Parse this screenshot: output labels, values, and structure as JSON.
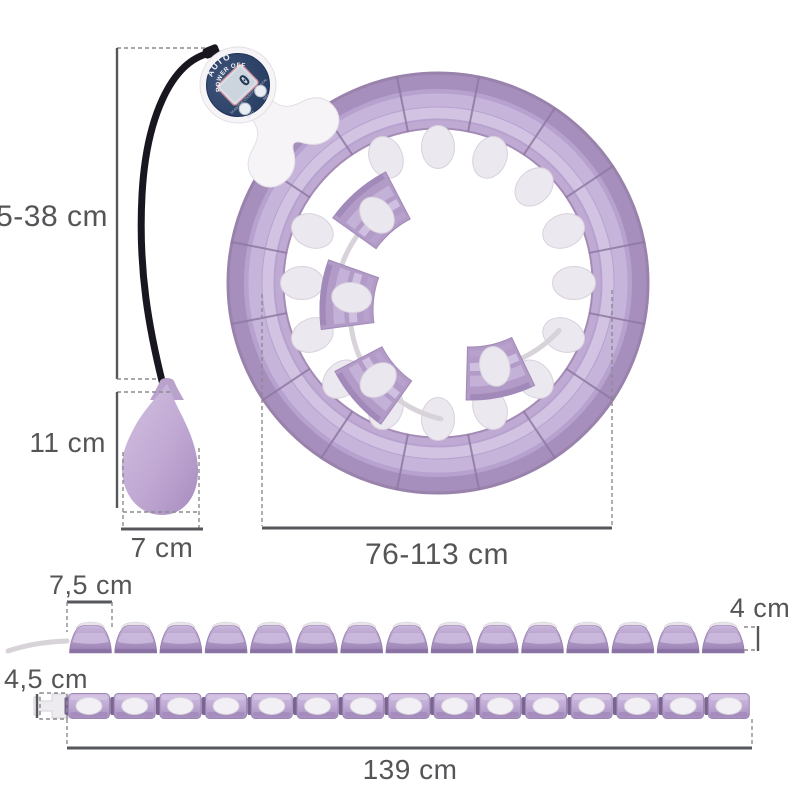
{
  "device": {
    "label_top": "AUTO",
    "label_bottom": "POWER OFF",
    "lcd_value": "0",
    "scale_text": "SCAN/TIME COUNT/TOTAL KCAL",
    "button_left": "MOD",
    "button_right": "RES"
  },
  "dimensions": {
    "cord_length": "5-38 cm",
    "ball_height": "11 cm",
    "ball_width": "7 cm",
    "hoop_diameter": "76-113 cm",
    "knot_width": "7,5 cm",
    "knot_height": "4 cm",
    "track_width": "4,5 cm",
    "total_length": "139 cm"
  },
  "colors": {
    "hoop_purple": "#b7a2cf",
    "hoop_light": "#d2c3e2",
    "knob_white": "#ece8ef",
    "ball_purple": "#c0a8d3",
    "device_navy": "#2b4066",
    "dimension_line": "#56575a"
  }
}
